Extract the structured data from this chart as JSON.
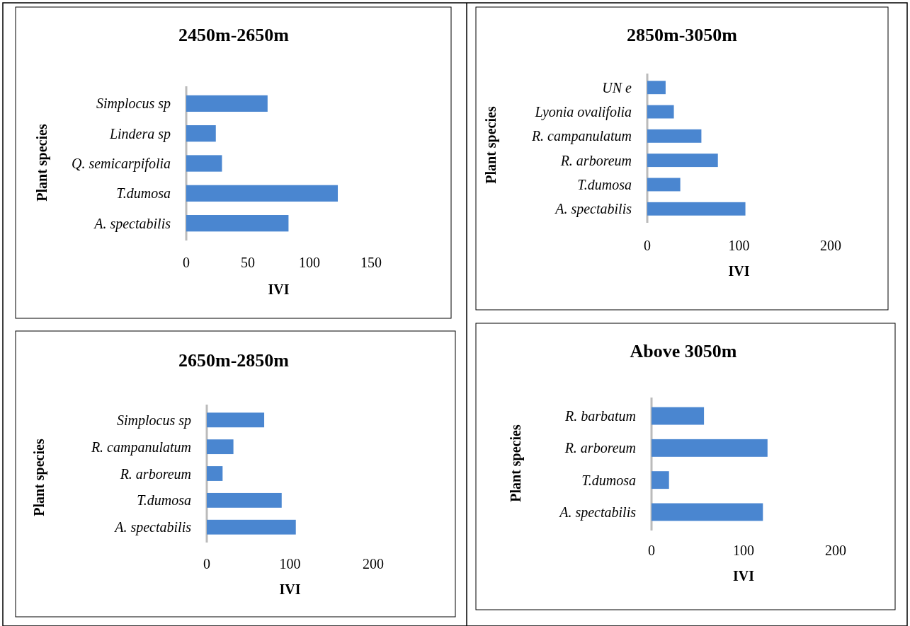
{
  "chart_data": [
    {
      "type": "bar",
      "orientation": "horizontal",
      "title": "2450m-2650m",
      "xlabel": "IVI",
      "ylabel": "Plant species",
      "categories": [
        "Simplocus sp",
        "Lindera sp",
        "Q. semicarpifolia",
        "T.dumosa",
        "A. spectabilis"
      ],
      "values": [
        66,
        24,
        29,
        123,
        83
      ],
      "color": "#4a86d0",
      "xlim": [
        0,
        150
      ],
      "xticks": [
        0,
        50,
        100,
        150
      ],
      "grid": false
    },
    {
      "type": "bar",
      "orientation": "horizontal",
      "title": "2850m-3050m",
      "xlabel": "IVI",
      "ylabel": "Plant species",
      "categories": [
        "UN e",
        "Lyonia ovalifolia",
        "R. campanulatum",
        "R. arboreum",
        "T.dumosa",
        "A. spectabilis"
      ],
      "values": [
        20,
        29,
        59,
        77,
        36,
        107
      ],
      "color": "#4a86d0",
      "xlim": [
        0,
        200
      ],
      "xticks": [
        0,
        100,
        200
      ],
      "grid": false
    },
    {
      "type": "bar",
      "orientation": "horizontal",
      "title": "2650m-2850m",
      "xlabel": "IVI",
      "ylabel": "Plant species",
      "categories": [
        "Simplocus sp",
        "R. campanulatum",
        "R. arboreum",
        "T.dumosa",
        "A. spectabilis"
      ],
      "values": [
        69,
        32,
        19,
        90,
        107
      ],
      "color": "#4a86d0",
      "xlim": [
        0,
        200
      ],
      "xticks": [
        0,
        100,
        200
      ],
      "grid": false
    },
    {
      "type": "bar",
      "orientation": "horizontal",
      "title": "Above 3050m",
      "xlabel": "IVI",
      "ylabel": "Plant species",
      "categories": [
        "R. barbatum",
        "R. arboreum",
        "T.dumosa",
        "A. spectabilis"
      ],
      "values": [
        57,
        126,
        19,
        121
      ],
      "color": "#4a86d0",
      "xlim": [
        0,
        200
      ],
      "xticks": [
        0,
        100,
        200
      ],
      "grid": false
    }
  ]
}
